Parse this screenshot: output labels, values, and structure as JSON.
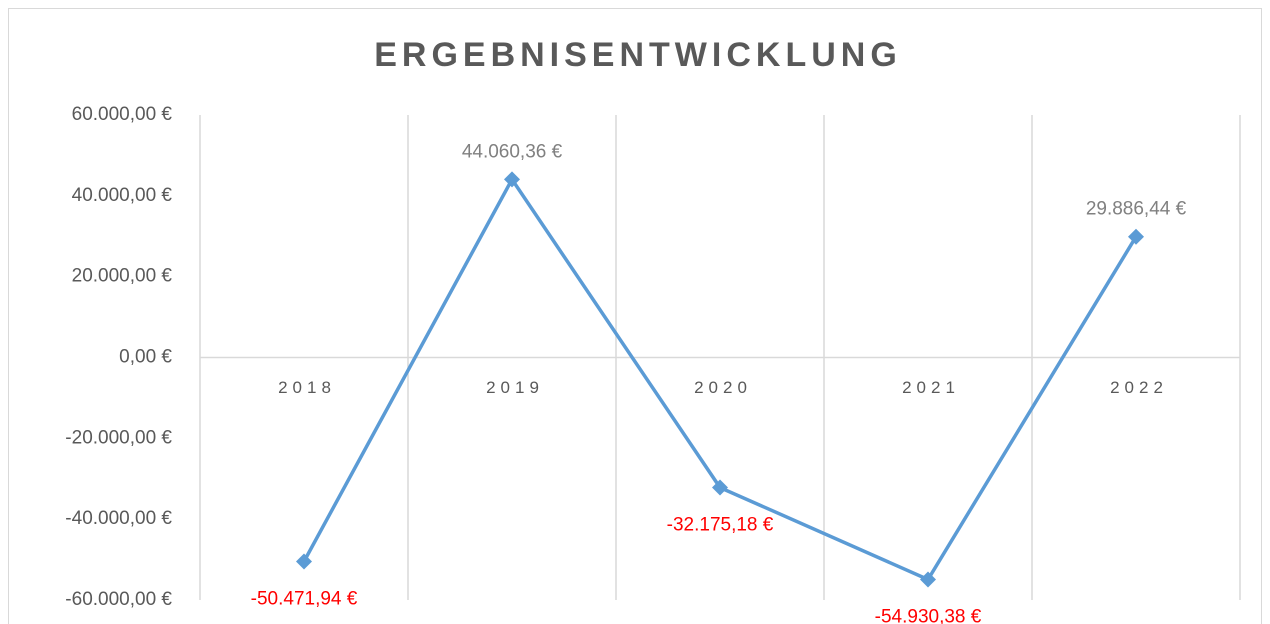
{
  "chart_data": {
    "type": "line",
    "title": "ERGEBNISENTWICKLUNG",
    "categories": [
      "2018",
      "2019",
      "2020",
      "2021",
      "2022"
    ],
    "values": [
      -50471.94,
      44060.36,
      -32175.18,
      -54930.38,
      29886.44
    ],
    "value_labels": [
      "-50.471,94 €",
      "44.060,36 €",
      "-32.175,18 €",
      "-54.930,38 €",
      "29.886,44 €"
    ],
    "color": "#5b9bd5",
    "label_color": "#808080",
    "negative_label_color": "#ff0000",
    "ylim": [
      -60000,
      60000
    ],
    "yticks": [
      {
        "value": -60000,
        "label": "-60.000,00 €"
      },
      {
        "value": -40000,
        "label": "-40.000,00 €"
      },
      {
        "value": -20000,
        "label": "-20.000,00 €"
      },
      {
        "value": 0,
        "label": "0,00 €"
      },
      {
        "value": 20000,
        "label": "20.000,00 €"
      },
      {
        "value": 40000,
        "label": "40.000,00 €"
      },
      {
        "value": 60000,
        "label": "60.000,00 €"
      }
    ],
    "grid": true
  }
}
